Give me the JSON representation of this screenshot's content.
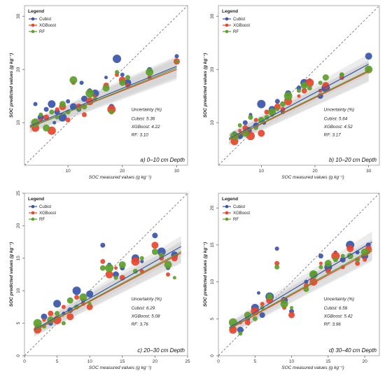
{
  "colors": {
    "Cubist": "#3A55A8",
    "XGBoost": "#E8452C",
    "RF": "#5E9E2B",
    "ribbon": "#C8C8C8",
    "reference": "#777777"
  },
  "chart_data": [
    {
      "type": "scatter",
      "panel_label": "a) 0–10 cm Depth",
      "xlabel": "SOC measured values (g kg⁻¹)",
      "ylabel": "SOC predicted values (g kg⁻¹)",
      "xlim": [
        2,
        32
      ],
      "ylim": [
        2,
        32
      ],
      "xticks": [
        10,
        20,
        30
      ],
      "yticks": [
        10,
        20,
        30
      ],
      "legend": {
        "title": "Legend",
        "position": "top-left",
        "entries": [
          "Cubist",
          "XGBoost",
          "RF"
        ]
      },
      "uncertainty_title": "Uncertainty (%)",
      "uncertainty": [
        {
          "label": "Cubist: 5.36"
        },
        {
          "label": "XGBoost: 4.22"
        },
        {
          "label": "RF: 3.10"
        }
      ],
      "reference_line": "1:1",
      "series": [
        {
          "name": "Cubist",
          "fit": [
            [
              3,
              9.4
            ],
            [
              30,
              20.6
            ]
          ],
          "x": [
            4,
            5,
            6,
            7,
            7.5,
            8,
            9,
            10,
            11,
            12,
            12.5,
            13,
            14,
            15,
            17,
            18,
            19,
            20,
            21,
            25,
            30
          ],
          "y": [
            13.5,
            11.0,
            12.5,
            13.5,
            10.0,
            12.0,
            11.0,
            14.0,
            13.0,
            12.5,
            17.5,
            14.5,
            16.0,
            15.5,
            18.5,
            13.0,
            22.0,
            19.0,
            17.5,
            20.0,
            22.5
          ]
        },
        {
          "name": "XGBoost",
          "fit": [
            [
              3,
              9.2
            ],
            [
              30,
              20.0
            ]
          ],
          "x": [
            4,
            5,
            6,
            7,
            8,
            9,
            10,
            11,
            12,
            13,
            14,
            15,
            17,
            18,
            19,
            20,
            21,
            25,
            30
          ],
          "y": [
            9.0,
            10.5,
            11.0,
            8.5,
            12.5,
            13.0,
            10.5,
            17.5,
            13.0,
            11.5,
            14.0,
            15.0,
            17.0,
            12.5,
            19.0,
            18.0,
            17.0,
            18.5,
            21.5
          ]
        },
        {
          "name": "RF",
          "fit": [
            [
              3,
              9.1
            ],
            [
              30,
              20.3
            ]
          ],
          "x": [
            4,
            5,
            6,
            7,
            8,
            9,
            10,
            11,
            12,
            13,
            14,
            15,
            17,
            18,
            19,
            20,
            21,
            25,
            30
          ],
          "y": [
            10.0,
            11.5,
            9.0,
            12.0,
            11.0,
            13.5,
            12.0,
            18.0,
            12.5,
            13.0,
            15.5,
            14.5,
            16.5,
            12.0,
            19.5,
            17.5,
            18.5,
            19.5,
            21.5
          ]
        }
      ]
    },
    {
      "type": "scatter",
      "panel_label": "b) 10–20 cm Depth",
      "xlabel": "SOC measured values (g kg⁻¹)",
      "ylabel": "SOC predicted values (g kg⁻¹)",
      "xlim": [
        2,
        32
      ],
      "ylim": [
        2,
        32
      ],
      "xticks": [
        10,
        20,
        30
      ],
      "yticks": [
        10,
        20,
        30
      ],
      "legend": {
        "title": "Legend",
        "position": "top-left",
        "entries": [
          "Cubist",
          "XGBoost",
          "RF"
        ]
      },
      "uncertainty_title": "Uncertainty (%)",
      "uncertainty": [
        {
          "label": "Cubist: 5.64"
        },
        {
          "label": "XGBoost: 4.52"
        },
        {
          "label": "RF: 3.17"
        }
      ],
      "reference_line": "1:1",
      "series": [
        {
          "name": "Cubist",
          "fit": [
            [
              4,
              7.0
            ],
            [
              30,
              21.0
            ]
          ],
          "x": [
            5,
            6,
            7,
            7.5,
            8,
            9,
            10,
            10.5,
            12,
            13,
            14,
            15,
            17,
            18,
            19,
            21,
            22,
            25,
            30
          ],
          "y": [
            8.0,
            7.5,
            10.0,
            8.5,
            11.5,
            9.5,
            13.5,
            10.0,
            12.5,
            14.0,
            12.0,
            15.5,
            16.5,
            17.5,
            18.0,
            15.0,
            16.5,
            19.0,
            22.5
          ]
        },
        {
          "name": "XGBoost",
          "fit": [
            [
              4,
              6.8
            ],
            [
              30,
              19.6
            ]
          ],
          "x": [
            5,
            6,
            7,
            8,
            9,
            10,
            11,
            12,
            13,
            14,
            15,
            17,
            18,
            19,
            21,
            22,
            25,
            30
          ],
          "y": [
            6.5,
            8.5,
            9.0,
            7.5,
            10.5,
            8.0,
            12.0,
            11.5,
            13.0,
            12.5,
            14.0,
            15.0,
            16.0,
            17.5,
            16.0,
            17.0,
            18.5,
            20.0
          ]
        },
        {
          "name": "RF",
          "fit": [
            [
              4,
              6.9
            ],
            [
              30,
              19.8
            ]
          ],
          "x": [
            5,
            6,
            7,
            8,
            9,
            10,
            11,
            12,
            13,
            14,
            15,
            17,
            18,
            19,
            21,
            22,
            25,
            30
          ],
          "y": [
            7.5,
            9.5,
            8.0,
            11.0,
            9.0,
            10.5,
            11.0,
            12.0,
            12.5,
            13.5,
            15.0,
            16.0,
            17.0,
            16.5,
            17.5,
            18.5,
            19.0,
            20.0
          ]
        }
      ]
    },
    {
      "type": "scatter",
      "panel_label": "c) 20–30 cm Depth",
      "xlabel": "SOC measured values (g kg⁻¹)",
      "ylabel": "SOC predicted values (g kg⁻¹)",
      "xlim": [
        0,
        25
      ],
      "ylim": [
        0,
        25
      ],
      "xticks": [
        0,
        5,
        10,
        15,
        20,
        25
      ],
      "yticks": [
        0,
        5,
        10,
        15,
        20,
        25
      ],
      "legend": {
        "title": "Legend",
        "position": "top-left",
        "entries": [
          "Cubist",
          "XGBoost",
          "RF"
        ]
      },
      "uncertainty_title": "Uncertainty (%)",
      "uncertainty": [
        {
          "label": "Cubist: 6.29"
        },
        {
          "label": "XGBoost: 5.08"
        },
        {
          "label": "RF: 3.76"
        }
      ],
      "reference_line": "1:1",
      "series": [
        {
          "name": "Cubist",
          "fit": [
            [
              1.5,
              4.0
            ],
            [
              24,
              16.8
            ]
          ],
          "x": [
            2,
            3,
            4,
            5,
            6,
            7,
            8,
            9,
            10,
            12,
            13,
            14,
            15,
            17,
            18,
            20,
            21,
            22,
            23
          ],
          "y": [
            4.5,
            6.0,
            5.0,
            8.0,
            6.5,
            7.0,
            10.0,
            8.5,
            9.5,
            17.0,
            14.0,
            12.5,
            13.5,
            15.0,
            14.5,
            18.5,
            16.0,
            13.5,
            15.5
          ]
        },
        {
          "name": "XGBoost",
          "fit": [
            [
              1.5,
              3.8
            ],
            [
              24,
              15.8
            ]
          ],
          "x": [
            2,
            3,
            4,
            5,
            6,
            7,
            8,
            9,
            10,
            12,
            13,
            14,
            15,
            17,
            18,
            20,
            21,
            22,
            23
          ],
          "y": [
            4.0,
            5.5,
            6.5,
            5.5,
            7.5,
            6.0,
            9.0,
            8.0,
            7.5,
            14.5,
            12.5,
            13.5,
            12.0,
            14.5,
            13.0,
            17.0,
            15.0,
            12.5,
            15.0
          ]
        },
        {
          "name": "RF",
          "fit": [
            [
              1.5,
              3.9
            ],
            [
              24,
              16.0
            ]
          ],
          "x": [
            2,
            3,
            4,
            5,
            6,
            7,
            8,
            9,
            10,
            12,
            13,
            14,
            15,
            17,
            18,
            20,
            21,
            22,
            23
          ],
          "y": [
            5.0,
            4.5,
            5.5,
            6.5,
            5.0,
            8.5,
            7.5,
            9.0,
            8.0,
            13.5,
            13.5,
            12.0,
            14.0,
            13.0,
            15.0,
            16.0,
            15.5,
            14.0,
            12.0
          ]
        }
      ]
    },
    {
      "type": "scatter",
      "panel_label": "d) 30–40 cm Depth",
      "xlabel": "SOC measured values (g kg⁻¹)",
      "ylabel": "SOC predicted values (g kg⁻¹)",
      "xlim": [
        0,
        22
      ],
      "ylim": [
        0,
        22
      ],
      "xticks": [
        0,
        5,
        10,
        15,
        20
      ],
      "yticks": [
        0,
        5,
        10,
        15,
        20
      ],
      "legend": {
        "title": "Legend",
        "position": "top-left",
        "entries": [
          "Cubist",
          "XGBoost",
          "RF"
        ]
      },
      "uncertainty_title": "Uncertainty (%)",
      "uncertainty": [
        {
          "label": "Cubist: 6.56"
        },
        {
          "label": "XGBoost: 5.42"
        },
        {
          "label": "RF: 3.96"
        }
      ],
      "reference_line": "1:1",
      "series": [
        {
          "name": "Cubist",
          "fit": [
            [
              1.5,
              3.8
            ],
            [
              21,
              15.4
            ]
          ],
          "x": [
            2,
            3,
            4,
            5,
            5.5,
            6,
            7,
            8,
            9,
            10,
            12,
            13,
            14,
            15,
            16,
            17,
            18,
            19,
            20,
            20.5
          ],
          "y": [
            4.0,
            3.5,
            5.0,
            6.5,
            8.5,
            5.5,
            8.0,
            14.5,
            7.5,
            6.0,
            10.0,
            11.0,
            13.5,
            12.0,
            14.0,
            13.0,
            15.0,
            14.0,
            13.5,
            15.0
          ]
        },
        {
          "name": "XGBoost",
          "fit": [
            [
              1.5,
              3.6
            ],
            [
              21,
              14.2
            ]
          ],
          "x": [
            2,
            3,
            4,
            5,
            6,
            7,
            8,
            9,
            10,
            12,
            13,
            14,
            15,
            16,
            17,
            18,
            19,
            20,
            20.5
          ],
          "y": [
            3.5,
            4.5,
            4.5,
            6.0,
            7.0,
            7.5,
            12.5,
            6.5,
            5.5,
            9.5,
            10.0,
            12.5,
            11.5,
            13.5,
            12.0,
            14.5,
            12.5,
            13.0,
            14.5
          ]
        },
        {
          "name": "RF",
          "fit": [
            [
              1.5,
              3.7
            ],
            [
              21,
              14.4
            ]
          ],
          "x": [
            2,
            3,
            4,
            5,
            6,
            7,
            8,
            9,
            10,
            12,
            13,
            14,
            15,
            16,
            17,
            18,
            19,
            20,
            20.5
          ],
          "y": [
            4.5,
            3.0,
            5.5,
            5.0,
            6.5,
            8.0,
            12.0,
            7.0,
            6.5,
            9.0,
            11.0,
            12.0,
            12.5,
            13.0,
            13.5,
            13.5,
            13.0,
            14.0,
            14.0
          ]
        }
      ]
    }
  ]
}
